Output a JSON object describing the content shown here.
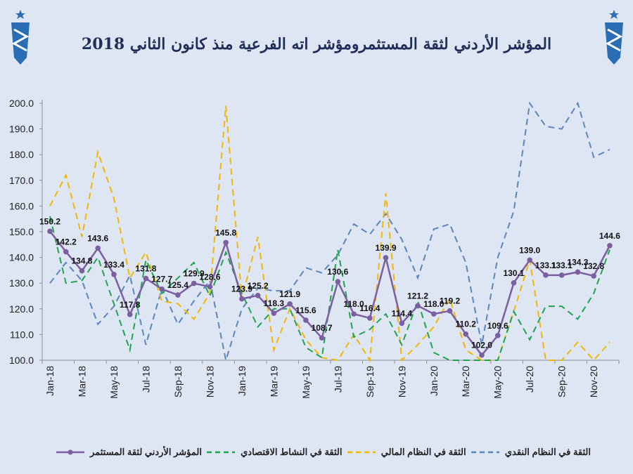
{
  "title": "المؤشر الأردني لثقة المستثمرومؤشر اته الفرعية منذ كانون الثاني 2018",
  "colors": {
    "background": "#dde6f2",
    "purple": "#7b5fa0",
    "green": "#1fa34f",
    "yellow": "#f2b705",
    "blue": "#5b85bd"
  },
  "chart_data": {
    "type": "line",
    "title": "المؤشر الأردني لثقة المستثمرومؤشر اته الفرعية منذ كانون الثاني 2018",
    "ylim": [
      100,
      200
    ],
    "yticks": [
      "100.0",
      "110.0",
      "120.0",
      "130.0",
      "140.0",
      "150.0",
      "160.0",
      "170.0",
      "180.0",
      "190.0",
      "200.0"
    ],
    "xtick_labels": [
      "Jan-18",
      "Mar-18",
      "May-18",
      "Jul-18",
      "Sep-18",
      "Nov-18",
      "Jan-19",
      "Mar-19",
      "May-19",
      "Jul-19",
      "Sep-19",
      "Nov-19",
      "Jan-20",
      "Mar-20",
      "May-20",
      "Jul-20",
      "Sep-20",
      "Nov-20"
    ],
    "x": [
      "Jan-18",
      "Feb-18",
      "Mar-18",
      "Apr-18",
      "May-18",
      "Jun-18",
      "Jul-18",
      "Aug-18",
      "Sep-18",
      "Oct-18",
      "Nov-18",
      "Dec-18",
      "Jan-19",
      "Feb-19",
      "Mar-19",
      "Apr-19",
      "May-19",
      "Jun-19",
      "Jul-19",
      "Aug-19",
      "Sep-19",
      "Oct-19",
      "Nov-19",
      "Dec-19",
      "Jan-20",
      "Feb-20",
      "Mar-20",
      "Apr-20",
      "May-20",
      "Jun-20",
      "Jul-20",
      "Aug-20",
      "Sep-20",
      "Oct-20",
      "Nov-20",
      "Dec-20"
    ],
    "grid": false,
    "legend_placement": "bottom",
    "series": [
      {
        "name": "الثقة في النظام النقدي",
        "color": "#5b85bd",
        "style": "dashed",
        "values": [
          130,
          138,
          131,
          114,
          121,
          133,
          106,
          128,
          114,
          123,
          131,
          100,
          120,
          128,
          127,
          127,
          136,
          134,
          141,
          153,
          149,
          157,
          147,
          132,
          151,
          153,
          138,
          106,
          140,
          158,
          200,
          191,
          190,
          200,
          179,
          182
        ]
      },
      {
        "name": "الثقة في النظام المالي",
        "color": "#f2b705",
        "style": "dashed",
        "values": [
          160,
          172,
          148,
          181,
          163,
          132,
          142,
          123,
          122,
          116,
          126,
          199,
          124,
          148,
          104,
          120,
          108,
          101,
          100,
          110,
          100,
          165,
          100,
          106,
          113,
          124,
          104,
          100,
          100,
          119,
          139,
          100,
          100,
          107,
          100,
          107
        ]
      },
      {
        "name": "الثقة في النشاط الاقتصادي",
        "color": "#1fa34f",
        "style": "dashed",
        "values": [
          156,
          130,
          131,
          140,
          122,
          104,
          139,
          126,
          132,
          138,
          125,
          142,
          126,
          113,
          120,
          120,
          105,
          101,
          143,
          109,
          112,
          118,
          106,
          123,
          103,
          100,
          100,
          100,
          100,
          119,
          108,
          121,
          121,
          116,
          126,
          143
        ]
      },
      {
        "name": "المؤشر الأردني لثقة المستثمر",
        "color": "#7b5fa0",
        "style": "solid-markers",
        "values": [
          150.2,
          142.2,
          134.8,
          143.6,
          133.4,
          117.8,
          131.8,
          127.7,
          125.4,
          129.9,
          128.6,
          145.8,
          123.9,
          125.2,
          118.3,
          121.9,
          115.6,
          108.7,
          130.6,
          118.0,
          116.4,
          139.9,
          114.4,
          121.2,
          118.0,
          119.2,
          110.2,
          102.0,
          109.6,
          130.1,
          139.0,
          133.1,
          133.1,
          134.3,
          132.8,
          144.6
        ],
        "data_labels": [
          "150.2",
          "142.2",
          "134.8",
          "143.6",
          "133.4",
          "117.8",
          "131.8",
          "127.7",
          "125.4",
          "129.9",
          "128.6",
          "145.8",
          "123.9",
          "125.2",
          "118.3",
          "121.9",
          "115.6",
          "108.7",
          "130.6",
          "118.0",
          "116.4",
          "139.9",
          "114.4",
          "121.2",
          "118.0",
          "119.2",
          "110.2",
          "102.0",
          "109.6",
          "130.1",
          "139.0",
          "133.1",
          "133.1",
          "134.3",
          "132.8",
          "144.6"
        ]
      }
    ]
  }
}
